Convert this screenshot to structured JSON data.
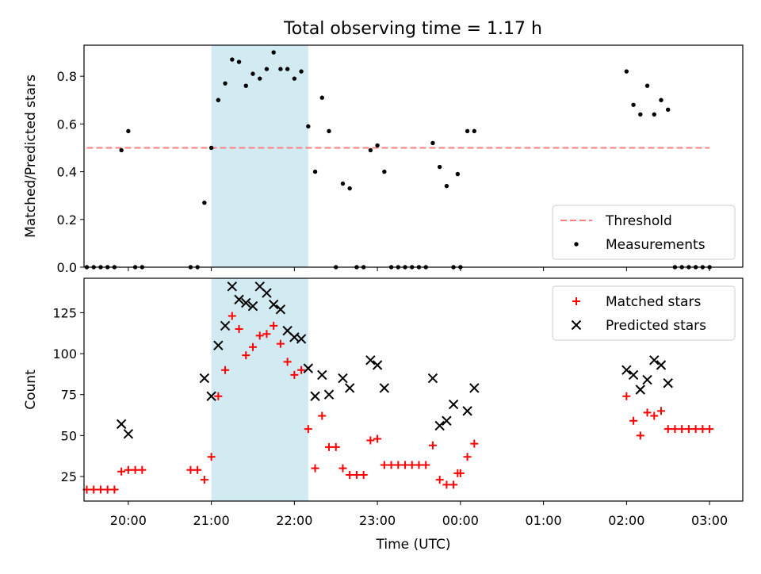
{
  "figure": {
    "title": "Total observing time = 1.17 h"
  },
  "chart_data": [
    {
      "type": "scatter",
      "ylabel": "Matched/Predicted stars",
      "ylim": [
        0,
        0.93
      ],
      "yticks": [
        "0.0",
        "0.2",
        "0.4",
        "0.6",
        "0.8"
      ],
      "x_axis": "time",
      "xlim": [
        "19:28",
        "03:24"
      ],
      "highlight_span": [
        "21:00",
        "22:10"
      ],
      "grid": false,
      "legend": {
        "position": "bottom-right",
        "entries": [
          {
            "label": "Threshold",
            "style": "dashed-line",
            "color": "#ff7f7f"
          },
          {
            "label": "Measurements",
            "style": "dot",
            "color": "#000000"
          }
        ]
      },
      "threshold": {
        "name": "Threshold",
        "y": 0.5,
        "x_start": "19:30",
        "x_end": "03:00",
        "color": "#ff7f7f"
      },
      "series": [
        {
          "name": "Measurements",
          "marker": "dot",
          "color": "#000000",
          "points": [
            [
              "19:30",
              0
            ],
            [
              "19:35",
              0
            ],
            [
              "19:40",
              0
            ],
            [
              "19:45",
              0
            ],
            [
              "19:50",
              0
            ],
            [
              "19:55",
              0.49
            ],
            [
              "20:00",
              0.57
            ],
            [
              "20:05",
              0
            ],
            [
              "20:10",
              0
            ],
            [
              "20:45",
              0
            ],
            [
              "20:50",
              0
            ],
            [
              "20:55",
              0.27
            ],
            [
              "21:00",
              0.5
            ],
            [
              "21:05",
              0.7
            ],
            [
              "21:10",
              0.77
            ],
            [
              "21:15",
              0.87
            ],
            [
              "21:20",
              0.86
            ],
            [
              "21:25",
              0.76
            ],
            [
              "21:30",
              0.81
            ],
            [
              "21:35",
              0.79
            ],
            [
              "21:40",
              0.83
            ],
            [
              "21:45",
              0.9
            ],
            [
              "21:50",
              0.83
            ],
            [
              "21:55",
              0.83
            ],
            [
              "22:00",
              0.79
            ],
            [
              "22:05",
              0.82
            ],
            [
              "22:10",
              0.59
            ],
            [
              "22:15",
              0.4
            ],
            [
              "22:20",
              0.71
            ],
            [
              "22:25",
              0.57
            ],
            [
              "22:30",
              0
            ],
            [
              "22:35",
              0.35
            ],
            [
              "22:40",
              0.33
            ],
            [
              "22:45",
              0
            ],
            [
              "22:50",
              0
            ],
            [
              "22:55",
              0.49
            ],
            [
              "23:00",
              0.51
            ],
            [
              "23:05",
              0.4
            ],
            [
              "23:10",
              0
            ],
            [
              "23:15",
              0
            ],
            [
              "23:20",
              0
            ],
            [
              "23:25",
              0
            ],
            [
              "23:30",
              0
            ],
            [
              "23:35",
              0
            ],
            [
              "23:40",
              0.52
            ],
            [
              "23:45",
              0.42
            ],
            [
              "23:50",
              0.34
            ],
            [
              "23:55",
              0
            ],
            [
              "23:58",
              0.39
            ],
            [
              "00:00",
              0
            ],
            [
              "00:05",
              0.57
            ],
            [
              "00:10",
              0.57
            ],
            [
              "02:00",
              0.82
            ],
            [
              "02:05",
              0.68
            ],
            [
              "02:10",
              0.64
            ],
            [
              "02:15",
              0.76
            ],
            [
              "02:20",
              0.64
            ],
            [
              "02:25",
              0.7
            ],
            [
              "02:30",
              0.66
            ],
            [
              "02:35",
              0
            ],
            [
              "02:40",
              0
            ],
            [
              "02:45",
              0
            ],
            [
              "02:50",
              0
            ],
            [
              "02:55",
              0
            ],
            [
              "03:00",
              0
            ]
          ]
        }
      ]
    },
    {
      "type": "scatter",
      "xlabel": "Time (UTC)",
      "ylabel": "Count",
      "ylim": [
        10,
        146
      ],
      "yticks": [
        "25",
        "50",
        "75",
        "100",
        "125"
      ],
      "x_axis": "time",
      "xlim": [
        "19:28",
        "03:24"
      ],
      "xticks": [
        "20:00",
        "21:00",
        "22:00",
        "23:00",
        "00:00",
        "01:00",
        "02:00",
        "03:00"
      ],
      "highlight_span": [
        "21:00",
        "22:10"
      ],
      "grid": false,
      "legend": {
        "position": "top-right",
        "entries": [
          {
            "label": "Matched stars",
            "style": "plus",
            "color": "#ff0000"
          },
          {
            "label": "Predicted stars",
            "style": "cross",
            "color": "#000000"
          }
        ]
      },
      "series": [
        {
          "name": "Matched stars",
          "marker": "plus",
          "color": "#ff0000",
          "points": [
            [
              "19:30",
              17
            ],
            [
              "19:35",
              17
            ],
            [
              "19:40",
              17
            ],
            [
              "19:45",
              17
            ],
            [
              "19:50",
              17
            ],
            [
              "19:55",
              28
            ],
            [
              "20:00",
              29
            ],
            [
              "20:05",
              29
            ],
            [
              "20:10",
              29
            ],
            [
              "20:45",
              29
            ],
            [
              "20:50",
              29
            ],
            [
              "20:55",
              23
            ],
            [
              "21:00",
              37
            ],
            [
              "21:05",
              74
            ],
            [
              "21:10",
              90
            ],
            [
              "21:15",
              123
            ],
            [
              "21:20",
              115
            ],
            [
              "21:25",
              99
            ],
            [
              "21:30",
              104
            ],
            [
              "21:35",
              111
            ],
            [
              "21:40",
              112
            ],
            [
              "21:45",
              117
            ],
            [
              "21:50",
              106
            ],
            [
              "21:55",
              95
            ],
            [
              "22:00",
              87
            ],
            [
              "22:05",
              90
            ],
            [
              "22:10",
              54
            ],
            [
              "22:15",
              30
            ],
            [
              "22:20",
              62
            ],
            [
              "22:25",
              43
            ],
            [
              "22:30",
              43
            ],
            [
              "22:35",
              30
            ],
            [
              "22:40",
              26
            ],
            [
              "22:45",
              26
            ],
            [
              "22:50",
              26
            ],
            [
              "22:55",
              47
            ],
            [
              "23:00",
              48
            ],
            [
              "23:05",
              32
            ],
            [
              "23:10",
              32
            ],
            [
              "23:15",
              32
            ],
            [
              "23:20",
              32
            ],
            [
              "23:25",
              32
            ],
            [
              "23:30",
              32
            ],
            [
              "23:35",
              32
            ],
            [
              "23:40",
              44
            ],
            [
              "23:45",
              23
            ],
            [
              "23:50",
              20
            ],
            [
              "23:55",
              20
            ],
            [
              "23:58",
              27
            ],
            [
              "00:00",
              27
            ],
            [
              "00:05",
              37
            ],
            [
              "00:10",
              45
            ],
            [
              "02:00",
              74
            ],
            [
              "02:05",
              59
            ],
            [
              "02:10",
              50
            ],
            [
              "02:15",
              64
            ],
            [
              "02:20",
              62
            ],
            [
              "02:25",
              65
            ],
            [
              "02:30",
              54
            ],
            [
              "02:35",
              54
            ],
            [
              "02:40",
              54
            ],
            [
              "02:45",
              54
            ],
            [
              "02:50",
              54
            ],
            [
              "02:55",
              54
            ],
            [
              "03:00",
              54
            ]
          ]
        },
        {
          "name": "Predicted stars",
          "marker": "cross",
          "color": "#000000",
          "points": [
            [
              "19:55",
              57
            ],
            [
              "20:00",
              51
            ],
            [
              "20:55",
              85
            ],
            [
              "21:00",
              74
            ],
            [
              "21:05",
              105
            ],
            [
              "21:10",
              117
            ],
            [
              "21:15",
              141
            ],
            [
              "21:20",
              133
            ],
            [
              "21:25",
              131
            ],
            [
              "21:30",
              129
            ],
            [
              "21:35",
              141
            ],
            [
              "21:40",
              137
            ],
            [
              "21:45",
              130
            ],
            [
              "21:50",
              127
            ],
            [
              "21:55",
              114
            ],
            [
              "22:00",
              110
            ],
            [
              "22:05",
              109
            ],
            [
              "22:10",
              91
            ],
            [
              "22:15",
              74
            ],
            [
              "22:20",
              87
            ],
            [
              "22:25",
              75
            ],
            [
              "22:35",
              85
            ],
            [
              "22:40",
              79
            ],
            [
              "22:55",
              96
            ],
            [
              "23:00",
              93
            ],
            [
              "23:05",
              79
            ],
            [
              "23:40",
              85
            ],
            [
              "23:45",
              56
            ],
            [
              "23:50",
              59
            ],
            [
              "23:55",
              69
            ],
            [
              "00:05",
              65
            ],
            [
              "00:10",
              79
            ],
            [
              "02:00",
              90
            ],
            [
              "02:05",
              87
            ],
            [
              "02:10",
              78
            ],
            [
              "02:15",
              84
            ],
            [
              "02:20",
              96
            ],
            [
              "02:25",
              93
            ],
            [
              "02:30",
              82
            ]
          ]
        }
      ]
    }
  ],
  "colors": {
    "highlight": "#add8e6",
    "threshold": "#ff7f7f",
    "matched": "#ff0000",
    "predicted": "#000000"
  }
}
